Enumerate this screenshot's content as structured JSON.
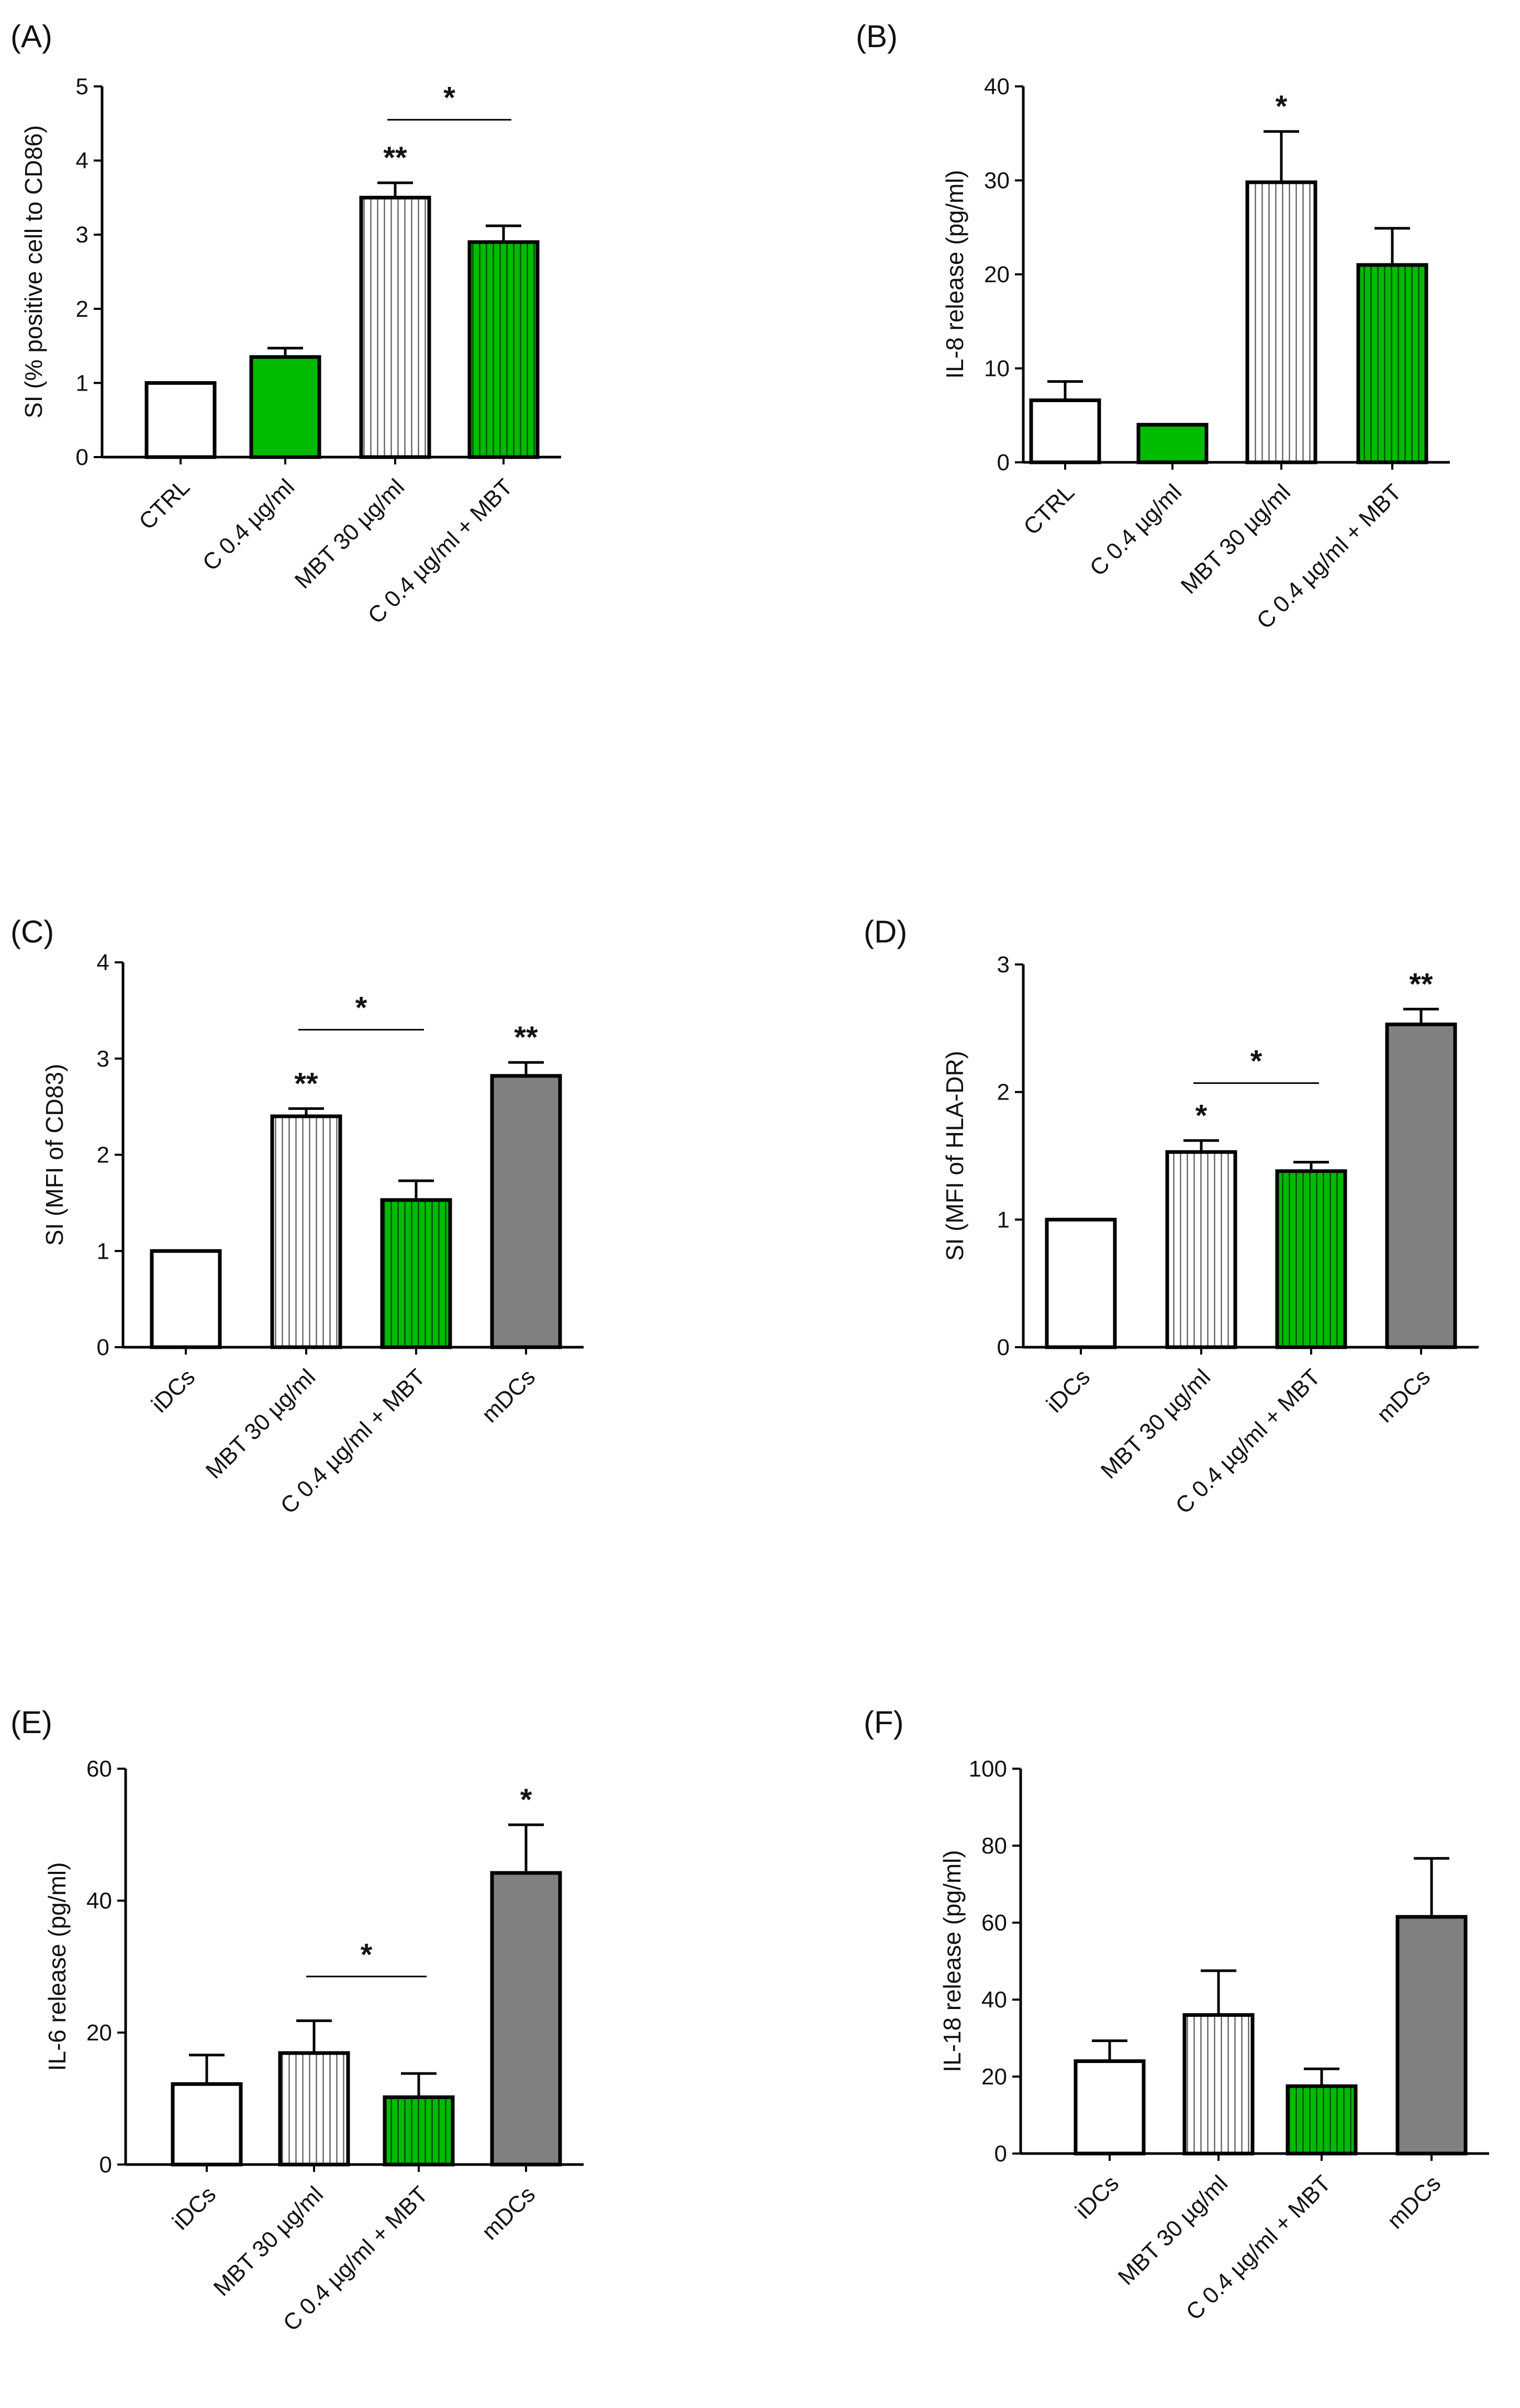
{
  "figure": {
    "background": "#ffffff"
  },
  "colors": {
    "green": "#00bb00",
    "gray": "#808080",
    "white": "#ffffff",
    "axis": "#000000",
    "stripe": "#555555"
  },
  "chart_data": [
    {
      "panel": "(A)",
      "type": "bar",
      "title": "",
      "xlabel": "",
      "ylabel": "SI (% positive cell to CD86)",
      "ylim": [
        0,
        5
      ],
      "yticks": [
        0,
        1,
        2,
        3,
        4,
        5
      ],
      "categories": [
        "CTRL",
        "C 0.4 µg/ml",
        "MBT 30 µg/ml",
        "C 0.4 µg/ml + MBT"
      ],
      "values": [
        1.0,
        1.35,
        3.5,
        2.9
      ],
      "errors": [
        0,
        0.12,
        0.2,
        0.22
      ],
      "fills": [
        "white",
        "green",
        "striped-white",
        "striped-green"
      ],
      "significance": [
        {
          "bar": 2,
          "label": "**"
        }
      ],
      "brackets": [
        {
          "from": 2,
          "to": 3,
          "label": "*",
          "level": 4.55
        }
      ]
    },
    {
      "panel": "(B)",
      "type": "bar",
      "title": "",
      "xlabel": "",
      "ylabel": "IL-8 release (pg/ml)",
      "ylim": [
        0,
        40
      ],
      "yticks": [
        0,
        10,
        20,
        30,
        40
      ],
      "categories": [
        "CTRL",
        "C 0.4 µg/ml",
        "MBT 30 µg/ml",
        "C 0.4 µg/ml + MBT"
      ],
      "values": [
        6.6,
        4.0,
        29.8,
        21.0
      ],
      "errors": [
        2.0,
        0,
        5.4,
        3.9
      ],
      "fills": [
        "white",
        "green",
        "striped-white",
        "striped-green"
      ],
      "significance": [
        {
          "bar": 2,
          "label": "*"
        }
      ],
      "brackets": []
    },
    {
      "panel": "(C)",
      "type": "bar",
      "title": "",
      "xlabel": "",
      "ylabel": "SI (MFI of CD83)",
      "ylim": [
        0,
        4
      ],
      "yticks": [
        0,
        1,
        2,
        3,
        4
      ],
      "categories": [
        "iDCs",
        "MBT 30 µg/ml",
        "C 0.4 µg/ml + MBT",
        "mDCs"
      ],
      "values": [
        1.0,
        2.4,
        1.53,
        2.82
      ],
      "errors": [
        0,
        0.08,
        0.2,
        0.14
      ],
      "fills": [
        "white",
        "striped-white",
        "striped-green",
        "gray"
      ],
      "significance": [
        {
          "bar": 1,
          "label": "**"
        },
        {
          "bar": 3,
          "label": "**"
        }
      ],
      "brackets": [
        {
          "from": 1,
          "to": 2,
          "label": "*",
          "level": 3.3
        }
      ]
    },
    {
      "panel": "(D)",
      "type": "bar",
      "title": "",
      "xlabel": "",
      "ylabel": "SI (MFI of HLA-DR)",
      "ylim": [
        0,
        3
      ],
      "yticks": [
        0,
        1,
        2,
        3
      ],
      "categories": [
        "iDCs",
        "MBT 30 µg/ml",
        "C 0.4 µg/ml + MBT",
        "mDCs"
      ],
      "values": [
        1.0,
        1.53,
        1.38,
        2.53
      ],
      "errors": [
        0,
        0.09,
        0.07,
        0.12
      ],
      "fills": [
        "white",
        "striped-white",
        "striped-green",
        "gray"
      ],
      "significance": [
        {
          "bar": 1,
          "label": "*"
        },
        {
          "bar": 3,
          "label": "**"
        }
      ],
      "brackets": [
        {
          "from": 1,
          "to": 2,
          "label": "*",
          "level": 2.07
        }
      ]
    },
    {
      "panel": "(E)",
      "type": "bar",
      "title": "",
      "xlabel": "",
      "ylabel": "IL-6 release (pg/ml)",
      "ylim": [
        0,
        60
      ],
      "yticks": [
        0,
        20,
        40,
        60
      ],
      "categories": [
        "iDCs",
        "MBT 30 µg/ml",
        "C 0.4 µg/ml + MBT",
        "mDCs"
      ],
      "values": [
        12.2,
        16.9,
        10.2,
        44.2
      ],
      "errors": [
        4.4,
        4.9,
        3.6,
        7.3
      ],
      "fills": [
        "white",
        "striped-white",
        "striped-green",
        "gray"
      ],
      "significance": [
        {
          "bar": 3,
          "label": "*"
        }
      ],
      "brackets": [
        {
          "from": 1,
          "to": 2,
          "label": "*",
          "level": 28.5
        }
      ]
    },
    {
      "panel": "(F)",
      "type": "bar",
      "title": "",
      "xlabel": "",
      "ylabel": "IL-18 release (pg/ml)",
      "ylim": [
        0,
        100
      ],
      "yticks": [
        0,
        20,
        40,
        60,
        80,
        100
      ],
      "categories": [
        "iDCs",
        "MBT 30 µg/ml",
        "C 0.4 µg/ml + MBT",
        "mDCs"
      ],
      "values": [
        24.0,
        36.0,
        17.5,
        61.5
      ],
      "errors": [
        5.3,
        11.5,
        4.5,
        15.2
      ],
      "fills": [
        "white",
        "striped-white",
        "striped-green",
        "gray"
      ],
      "significance": [],
      "brackets": []
    }
  ]
}
